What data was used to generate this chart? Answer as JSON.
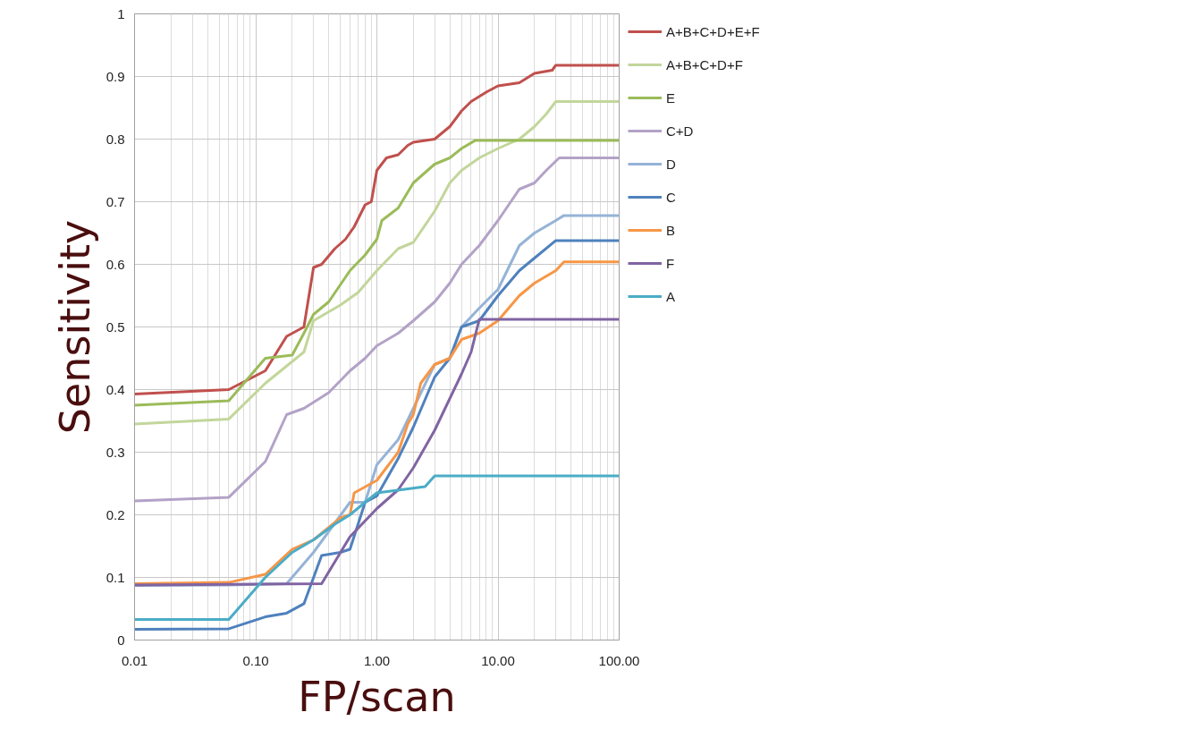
{
  "chart_data": {
    "type": "line",
    "xlabel": "FP/scan",
    "ylabel": "Sensitivity",
    "log": "x",
    "xlim": [
      0.01,
      100
    ],
    "xticks": [
      0.01,
      {
        "value": 0.1,
        "label": "0.10"
      },
      {
        "value": 1,
        "label": "1.00"
      },
      {
        "value": 10,
        "label": "10.00"
      },
      {
        "value": 100,
        "label": "100.00"
      }
    ],
    "ylim": [
      0,
      1
    ],
    "yticks": [
      0,
      0.1,
      0.2,
      0.3,
      0.4,
      0.5,
      0.6,
      0.7,
      0.8,
      0.9,
      1
    ],
    "grid": true,
    "legend": "right",
    "marker": "none",
    "line_style": "solid",
    "series": [
      {
        "name": "A+B+C+D+E+F",
        "color": "#c0504d",
        "x": [
          0.01,
          0.06,
          0.12,
          0.18,
          0.25,
          0.3,
          0.35,
          0.45,
          0.55,
          0.65,
          0.8,
          0.9,
          1,
          1.2,
          1.5,
          1.8,
          2,
          3,
          4,
          5,
          6,
          8,
          10,
          15,
          20,
          28,
          30,
          100
        ],
        "values": [
          0.393,
          0.4,
          0.43,
          0.485,
          0.5,
          0.595,
          0.6,
          0.625,
          0.64,
          0.66,
          0.695,
          0.7,
          0.75,
          0.77,
          0.775,
          0.79,
          0.795,
          0.8,
          0.82,
          0.845,
          0.86,
          0.875,
          0.885,
          0.89,
          0.905,
          0.91,
          0.918,
          0.918
        ]
      },
      {
        "name": "A+B+C+D+F",
        "color": "#c3d69b",
        "x": [
          0.01,
          0.06,
          0.12,
          0.25,
          0.3,
          0.5,
          0.7,
          1,
          1.5,
          2,
          3,
          4,
          5,
          7,
          10,
          15,
          20,
          25,
          30,
          100
        ],
        "values": [
          0.345,
          0.353,
          0.41,
          0.46,
          0.51,
          0.535,
          0.555,
          0.59,
          0.625,
          0.635,
          0.685,
          0.73,
          0.75,
          0.77,
          0.785,
          0.8,
          0.82,
          0.84,
          0.86,
          0.86
        ]
      },
      {
        "name": "E",
        "color": "#9bbb59",
        "x": [
          0.01,
          0.06,
          0.12,
          0.2,
          0.25,
          0.3,
          0.4,
          0.6,
          0.8,
          1,
          1.1,
          1.5,
          2,
          3,
          4,
          5,
          6.5,
          100
        ],
        "values": [
          0.375,
          0.382,
          0.45,
          0.455,
          0.49,
          0.52,
          0.54,
          0.59,
          0.615,
          0.64,
          0.67,
          0.69,
          0.73,
          0.76,
          0.77,
          0.785,
          0.798,
          0.798
        ]
      },
      {
        "name": "C+D",
        "color": "#b3a2c7",
        "x": [
          0.01,
          0.06,
          0.12,
          0.18,
          0.25,
          0.4,
          0.6,
          0.8,
          1,
          1.5,
          2,
          3,
          4,
          5,
          7,
          10,
          15,
          20,
          25,
          32,
          100
        ],
        "values": [
          0.222,
          0.228,
          0.285,
          0.36,
          0.37,
          0.395,
          0.43,
          0.45,
          0.47,
          0.49,
          0.51,
          0.54,
          0.57,
          0.6,
          0.63,
          0.67,
          0.72,
          0.73,
          0.75,
          0.77,
          0.77
        ]
      },
      {
        "name": "D",
        "color": "#95b3d7",
        "x": [
          0.01,
          0.06,
          0.18,
          0.3,
          0.6,
          0.8,
          1,
          1.5,
          2,
          3,
          4,
          5,
          7,
          10,
          15,
          20,
          30,
          35,
          100
        ],
        "values": [
          0.087,
          0.088,
          0.09,
          0.14,
          0.22,
          0.22,
          0.28,
          0.32,
          0.37,
          0.44,
          0.45,
          0.5,
          0.53,
          0.56,
          0.63,
          0.65,
          0.67,
          0.678,
          0.678
        ]
      },
      {
        "name": "C",
        "color": "#4f81bd",
        "x": [
          0.01,
          0.06,
          0.12,
          0.18,
          0.25,
          0.35,
          0.5,
          0.6,
          0.8,
          1,
          1.5,
          2,
          3,
          4,
          5,
          7,
          10,
          15,
          20,
          30,
          100
        ],
        "values": [
          0.017,
          0.018,
          0.037,
          0.043,
          0.058,
          0.135,
          0.14,
          0.145,
          0.22,
          0.23,
          0.29,
          0.34,
          0.42,
          0.45,
          0.5,
          0.51,
          0.55,
          0.59,
          0.61,
          0.638,
          0.638
        ]
      },
      {
        "name": "B",
        "color": "#f79646",
        "x": [
          0.01,
          0.06,
          0.12,
          0.2,
          0.3,
          0.5,
          0.6,
          0.65,
          1,
          1.5,
          1.8,
          2,
          2.3,
          3,
          4,
          5,
          7,
          10,
          15,
          20,
          30,
          35,
          100
        ],
        "values": [
          0.09,
          0.092,
          0.105,
          0.145,
          0.16,
          0.195,
          0.2,
          0.235,
          0.255,
          0.3,
          0.345,
          0.36,
          0.41,
          0.44,
          0.45,
          0.48,
          0.49,
          0.51,
          0.55,
          0.57,
          0.59,
          0.604,
          0.604
        ]
      },
      {
        "name": "F",
        "color": "#8064a2",
        "x": [
          0.01,
          0.35,
          0.6,
          1,
          1.5,
          2,
          3,
          5,
          6,
          7,
          100
        ],
        "values": [
          0.088,
          0.09,
          0.165,
          0.21,
          0.24,
          0.275,
          0.335,
          0.425,
          0.46,
          0.512,
          0.512
        ]
      },
      {
        "name": "A",
        "color": "#4bacc6",
        "x": [
          0.01,
          0.06,
          0.12,
          0.2,
          0.3,
          0.45,
          0.6,
          0.8,
          1,
          2.5,
          3,
          100
        ],
        "values": [
          0.033,
          0.033,
          0.1,
          0.14,
          0.16,
          0.185,
          0.2,
          0.22,
          0.235,
          0.245,
          0.262,
          0.262
        ]
      }
    ]
  }
}
